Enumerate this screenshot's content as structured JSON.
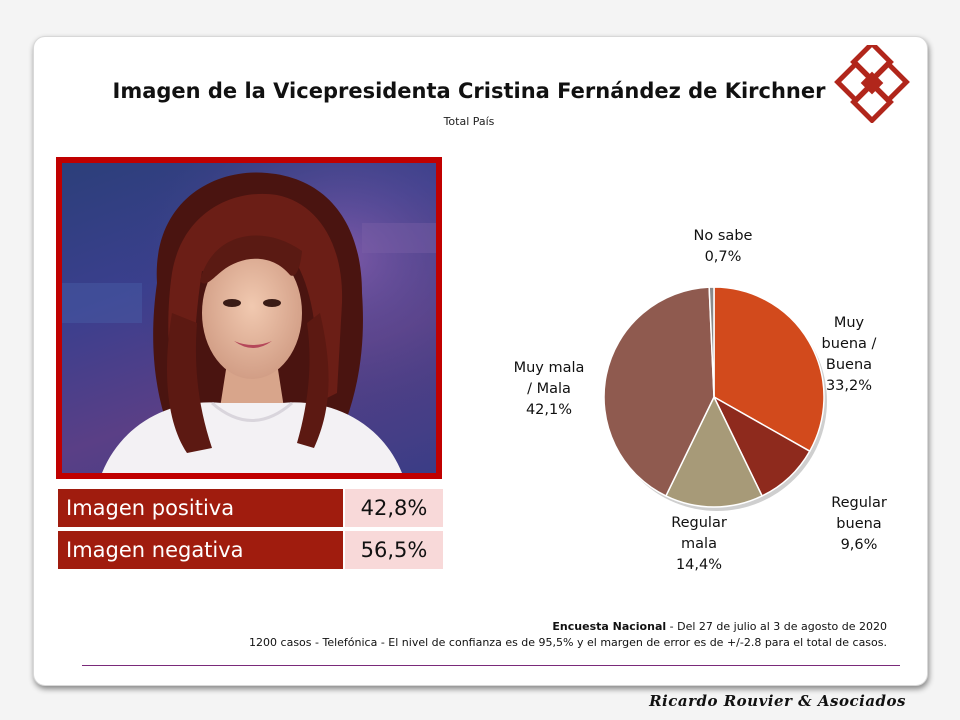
{
  "slide": {
    "title": "Imagen de la Vicepresidenta Cristina Fernández de Kirchner",
    "subtitle": "Total País"
  },
  "image_summary": [
    {
      "label": "Imagen positiva",
      "value": "42,8%"
    },
    {
      "label": "Imagen negativa",
      "value": "56,5%"
    }
  ],
  "chart_data": {
    "type": "pie",
    "title": "",
    "start": "top",
    "direction": "clockwise",
    "slices": [
      {
        "label_lines": [
          "Muy",
          "buena /",
          "Buena"
        ],
        "value": 33.2,
        "value_text": "33,2%",
        "color": "#d24a1c"
      },
      {
        "label_lines": [
          "Regular",
          "buena"
        ],
        "value": 9.6,
        "value_text": "9,6%",
        "color": "#8e2a1d"
      },
      {
        "label_lines": [
          "Regular",
          "mala"
        ],
        "value": 14.4,
        "value_text": "14,4%",
        "color": "#a79a78"
      },
      {
        "label_lines": [
          "Muy mala",
          "/ Mala"
        ],
        "value": 42.1,
        "value_text": "42,1%",
        "color": "#8f5a4f"
      },
      {
        "label_lines": [
          "No sabe"
        ],
        "value": 0.7,
        "value_text": "0,7%",
        "color": "#8a8a8a"
      }
    ]
  },
  "footer": {
    "survey_name": "Encuesta Nacional",
    "survey_dates": " - Del 27 de julio al 3 de agosto de 2020",
    "methodology": "1200 casos - Telefónica  - El nivel de confianza es de 95,5% y el margen de error es de +/-2.8 para el total de casos."
  },
  "brand": "Ricardo Rouvier & Asociados",
  "colors": {
    "accent_red": "#c00000",
    "label_bg": "#a01c0e",
    "value_bg": "#f8d9d9",
    "footer_line": "#7a2a7a"
  },
  "icons": {
    "logo": "interlocked-diamonds-logo",
    "photo": "portrait-photo"
  }
}
